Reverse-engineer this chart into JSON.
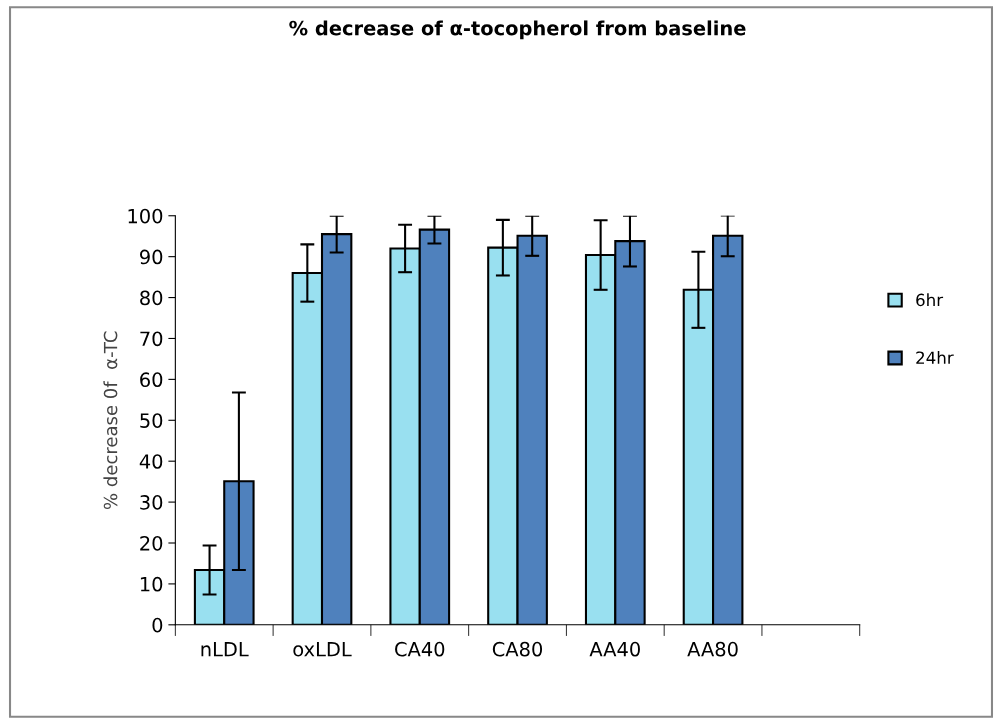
{
  "chart_data": {
    "type": "bar",
    "title": "% decrease of α-tocopherol from baseline",
    "ylabel": "% decrease 0f  α-TC",
    "categories": [
      "nLDL",
      "oxLDL",
      "CA40",
      "CA80",
      "AA40",
      "AA80",
      null
    ],
    "series": [
      {
        "name": "6hr",
        "color": "#99e0f0",
        "values": [
          13.4,
          86.0,
          92.0,
          92.2,
          90.4,
          81.9,
          null
        ],
        "errors": [
          6.0,
          7.0,
          5.8,
          6.8,
          8.5,
          9.3,
          null
        ]
      },
      {
        "name": "24hr",
        "color": "#4f81bd",
        "values": [
          35.1,
          95.5,
          96.6,
          95.1,
          93.8,
          95.1,
          null
        ],
        "errors": [
          21.7,
          4.5,
          3.4,
          4.9,
          6.2,
          5.0,
          null
        ]
      }
    ],
    "ylim": [
      0,
      100
    ],
    "yticks": [
      0,
      10,
      20,
      30,
      40,
      50,
      60,
      70,
      80,
      90,
      100
    ],
    "grid": false,
    "legend": "right"
  }
}
